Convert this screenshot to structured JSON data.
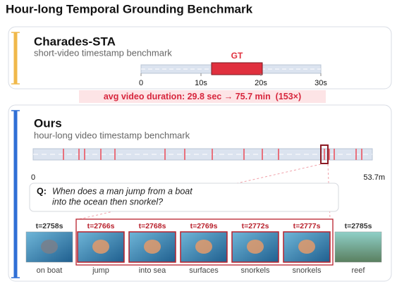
{
  "title": "Hour-long Temporal Grounding Benchmark",
  "short_panel": {
    "name": "Charades-STA",
    "subtitle": "short-video timestamp benchmark",
    "gt_label": "GT",
    "axis_labels": [
      "0",
      "10s",
      "20s",
      "30s"
    ]
  },
  "banner": "avg video duration: 29.8 sec → 75.7 min  (153×)",
  "long_panel": {
    "name": "Ours",
    "subtitle": "hour-long video timestamp benchmark",
    "axis_labels": [
      "0",
      "53.7m"
    ],
    "question_prefix": "Q:",
    "question_lines": [
      "When does a man jump from a boat",
      "into the ocean then snorkel?"
    ],
    "frames": [
      {
        "time": "t=2758s",
        "caption": "on boat"
      },
      {
        "time": "t=2766s",
        "caption": "jump"
      },
      {
        "time": "t=2768s",
        "caption": "into sea"
      },
      {
        "time": "t=2769s",
        "caption": "surfaces"
      },
      {
        "time": "t=2772s",
        "caption": "snorkels"
      },
      {
        "time": "t=2777s",
        "caption": "snorkels"
      },
      {
        "time": "t=2785s",
        "caption": "reef"
      }
    ]
  }
}
